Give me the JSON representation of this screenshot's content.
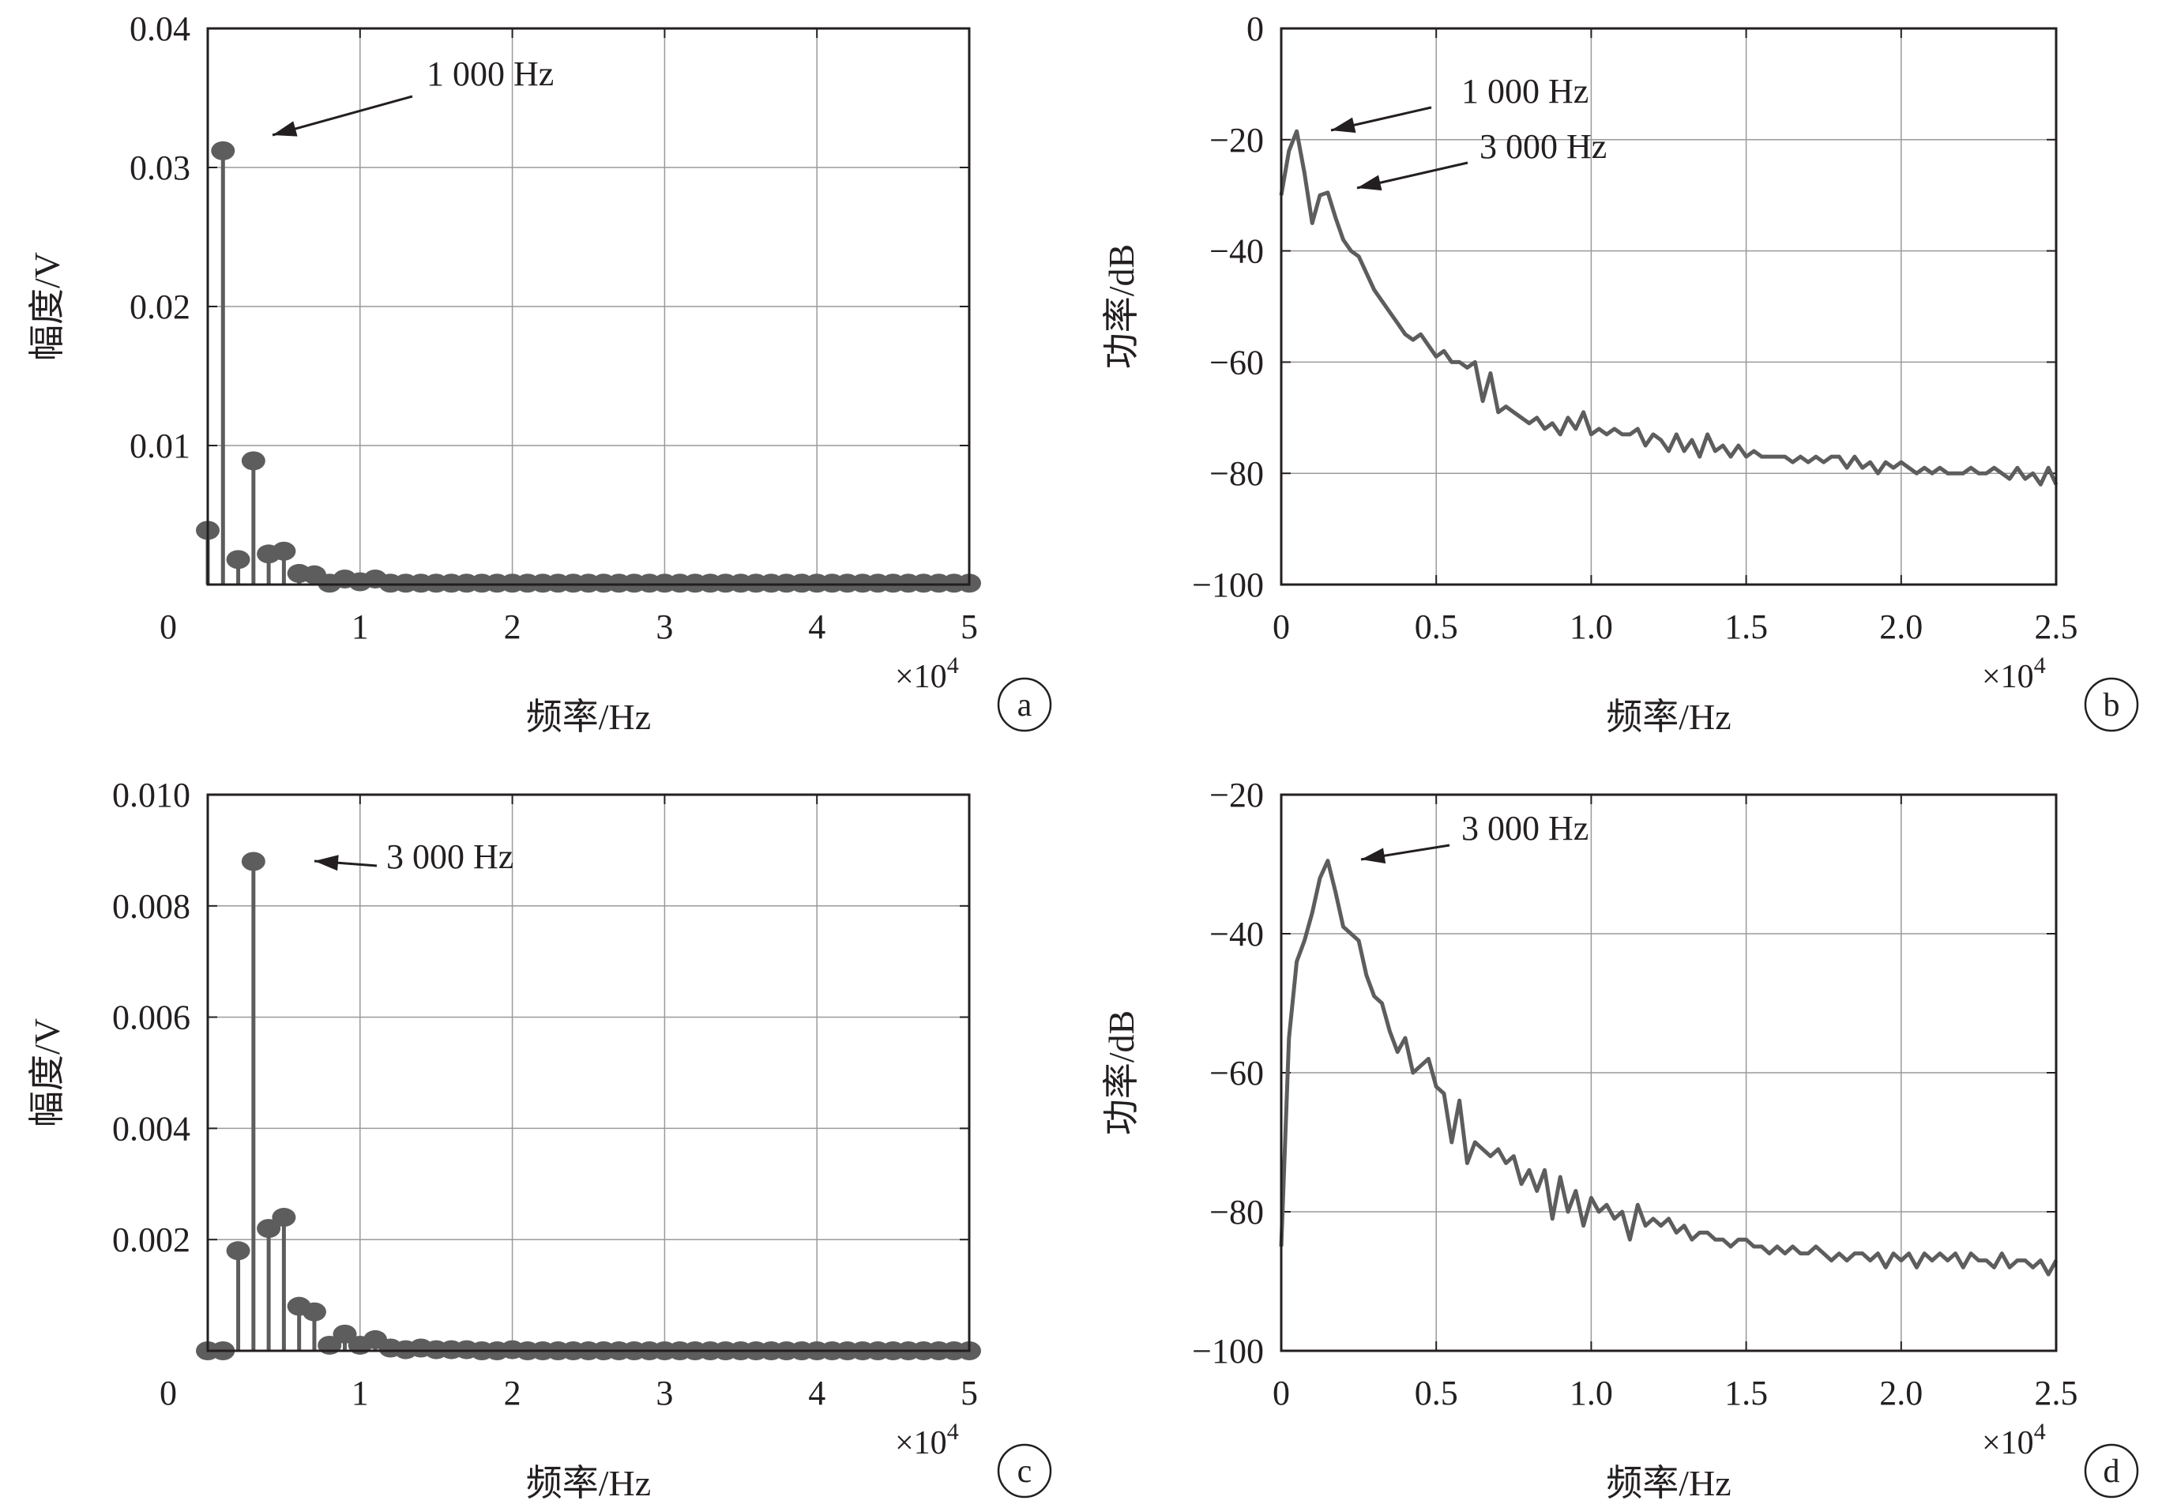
{
  "figure": {
    "color_axis": "#231f20",
    "color_grid": "#9a9a9a",
    "color_series": "#5d5d5d"
  },
  "chart_data": [
    {
      "panel": "a",
      "type": "stem",
      "title": "",
      "xlabel": "频率/Hz",
      "ylabel": "幅度/V",
      "x_multiplier": "×10",
      "x_multiplier_exp": "4",
      "panel_label": "a",
      "xlim": [
        0,
        50000
      ],
      "ylim": [
        0,
        0.04
      ],
      "xticks": [
        0,
        10000,
        20000,
        30000,
        40000,
        50000
      ],
      "xtick_labels": [
        "0",
        "1",
        "2",
        "3",
        "4",
        "5"
      ],
      "yticks": [
        0.01,
        0.02,
        0.03,
        0.04
      ],
      "ytick_labels": [
        "0.01",
        "0.02",
        "0.03",
        "0.04"
      ],
      "grid": true,
      "annotations": [
        {
          "text": "1 000 Hz",
          "x": 1000,
          "y": 0.0312
        }
      ],
      "x": [
        0,
        1000,
        2000,
        3000,
        4000,
        5000,
        6000,
        7000,
        8000,
        9000,
        10000,
        11000,
        12000,
        13000,
        14000,
        15000,
        16000,
        17000,
        18000,
        19000,
        20000,
        21000,
        22000,
        23000,
        24000,
        25000,
        26000,
        27000,
        28000,
        29000,
        30000,
        31000,
        32000,
        33000,
        34000,
        35000,
        36000,
        37000,
        38000,
        39000,
        40000,
        41000,
        42000,
        43000,
        44000,
        45000,
        46000,
        47000,
        48000,
        49000,
        50000
      ],
      "values": [
        0.0039,
        0.0312,
        0.0018,
        0.0089,
        0.0022,
        0.0024,
        0.0008,
        0.0007,
        0.0001,
        0.0004,
        0.0002,
        0.0004,
        0.0001,
        0.0001,
        0.0001,
        0.0001,
        0.0001,
        0.0001,
        0.0001,
        0.0001,
        0.0001,
        0.0001,
        0.0001,
        0.0001,
        0.0001,
        0.0001,
        0.0001,
        0.0001,
        0.0001,
        0.0001,
        0.0001,
        0.0001,
        0.0001,
        0.0001,
        0.0001,
        0.0001,
        0.0001,
        0.0001,
        0.0001,
        0.0001,
        0.0001,
        0.0001,
        0.0001,
        0.0001,
        0.0001,
        0.0001,
        0.0001,
        0.0001,
        0.0001,
        0.0001,
        0.0001
      ]
    },
    {
      "panel": "b",
      "type": "line",
      "title": "",
      "xlabel": "频率/Hz",
      "ylabel": "功率/dB",
      "x_multiplier": "×10",
      "x_multiplier_exp": "4",
      "panel_label": "b",
      "xlim": [
        0,
        25000
      ],
      "ylim": [
        -100,
        0
      ],
      "xticks": [
        0,
        5000,
        10000,
        15000,
        20000,
        25000
      ],
      "xtick_labels": [
        "0",
        "0.5",
        "1.0",
        "1.5",
        "2.0",
        "2.5"
      ],
      "yticks": [
        -100,
        -80,
        -60,
        -40,
        -20,
        0
      ],
      "ytick_labels": [
        "−100",
        "−80",
        "−60",
        "−40",
        "−20",
        "0"
      ],
      "grid": true,
      "annotations": [
        {
          "text": "1 000 Hz",
          "x": 500,
          "y": -19
        },
        {
          "text": "3 000 Hz",
          "x": 1500,
          "y": -29
        }
      ],
      "x": [
        0,
        250,
        500,
        750,
        1000,
        1250,
        1500,
        1750,
        2000,
        2250,
        2500,
        2750,
        3000,
        3250,
        3500,
        3750,
        4000,
        4250,
        4500,
        4750,
        5000,
        5250,
        5500,
        5750,
        6000,
        6250,
        6500,
        6750,
        7000,
        7250,
        7500,
        7750,
        8000,
        8250,
        8500,
        8750,
        9000,
        9250,
        9500,
        9750,
        10000,
        10250,
        10500,
        10750,
        11000,
        11250,
        11500,
        11750,
        12000,
        12250,
        12500,
        12750,
        13000,
        13250,
        13500,
        13750,
        14000,
        14250,
        14500,
        14750,
        15000,
        15250,
        15500,
        15750,
        16000,
        16250,
        16500,
        16750,
        17000,
        17250,
        17500,
        17750,
        18000,
        18250,
        18500,
        18750,
        19000,
        19250,
        19500,
        19750,
        20000,
        20250,
        20500,
        20750,
        21000,
        21250,
        21500,
        21750,
        22000,
        22250,
        22500,
        22750,
        23000,
        23250,
        23500,
        23750,
        24000,
        24250,
        24500,
        24750,
        25000
      ],
      "values": [
        -30,
        -22,
        -18.5,
        -26,
        -35,
        -30,
        -29.5,
        -34,
        -38,
        -40,
        -41,
        -44,
        -47,
        -49,
        -51,
        -53,
        -55,
        -56,
        -55,
        -57,
        -59,
        -58,
        -60,
        -60,
        -61,
        -60,
        -67,
        -62,
        -69,
        -68,
        -69,
        -70,
        -71,
        -70,
        -72,
        -71,
        -73,
        -70,
        -72,
        -69,
        -73,
        -72,
        -73,
        -72,
        -73,
        -73,
        -72,
        -75,
        -73,
        -74,
        -76,
        -73,
        -76,
        -74,
        -77,
        -73,
        -76,
        -75,
        -77,
        -75,
        -77,
        -76,
        -77,
        -77,
        -77,
        -77,
        -78,
        -77,
        -78,
        -77,
        -78,
        -77,
        -77,
        -79,
        -77,
        -79,
        -78,
        -80,
        -78,
        -79,
        -78,
        -79,
        -80,
        -79,
        -80,
        -79,
        -80,
        -80,
        -80,
        -79,
        -80,
        -80,
        -79,
        -80,
        -81,
        -79,
        -81,
        -80,
        -82,
        -79,
        -82
      ]
    },
    {
      "panel": "c",
      "type": "stem",
      "title": "",
      "xlabel": "频率/Hz",
      "ylabel": "幅度/V",
      "x_multiplier": "×10",
      "x_multiplier_exp": "4",
      "panel_label": "c",
      "xlim": [
        0,
        50000
      ],
      "ylim": [
        0,
        0.01
      ],
      "xticks": [
        0,
        10000,
        20000,
        30000,
        40000,
        50000
      ],
      "xtick_labels": [
        "0",
        "1",
        "2",
        "3",
        "4",
        "5"
      ],
      "yticks": [
        0.002,
        0.004,
        0.006,
        0.008,
        0.01
      ],
      "ytick_labels": [
        "0.002",
        "0.004",
        "0.006",
        "0.008",
        "0.010"
      ],
      "grid": true,
      "annotations": [
        {
          "text": "3 000 Hz",
          "x": 3000,
          "y": 0.0088
        }
      ],
      "x": [
        0,
        1000,
        2000,
        3000,
        4000,
        5000,
        6000,
        7000,
        8000,
        9000,
        10000,
        11000,
        12000,
        13000,
        14000,
        15000,
        16000,
        17000,
        18000,
        19000,
        20000,
        21000,
        22000,
        23000,
        24000,
        25000,
        26000,
        27000,
        28000,
        29000,
        30000,
        31000,
        32000,
        33000,
        34000,
        35000,
        36000,
        37000,
        38000,
        39000,
        40000,
        41000,
        42000,
        43000,
        44000,
        45000,
        46000,
        47000,
        48000,
        49000,
        50000
      ],
      "values": [
        0,
        0,
        0.0018,
        0.0088,
        0.0022,
        0.0024,
        0.0008,
        0.0007,
        0.0001,
        0.0003,
        0.0001,
        0.0002,
        5e-05,
        2e-05,
        5e-05,
        2e-05,
        2e-05,
        2e-05,
        0,
        0,
        2e-05,
        0,
        0,
        0,
        0,
        0,
        0,
        0,
        0,
        0,
        0,
        0,
        0,
        0,
        0,
        0,
        0,
        0,
        0,
        0,
        0,
        0,
        0,
        0,
        0,
        0,
        0,
        0,
        0,
        0,
        0
      ]
    },
    {
      "panel": "d",
      "type": "line",
      "title": "",
      "xlabel": "频率/Hz",
      "ylabel": "功率/dB",
      "x_multiplier": "×10",
      "x_multiplier_exp": "4",
      "panel_label": "d",
      "xlim": [
        0,
        25000
      ],
      "ylim": [
        -100,
        -20
      ],
      "xticks": [
        0,
        5000,
        10000,
        15000,
        20000,
        25000
      ],
      "xtick_labels": [
        "0",
        "0.5",
        "1.0",
        "1.5",
        "2.0",
        "2.5"
      ],
      "yticks": [
        -100,
        -80,
        -60,
        -40,
        -20
      ],
      "ytick_labels": [
        "−100",
        "−80",
        "−60",
        "−40",
        "−20"
      ],
      "grid": true,
      "annotations": [
        {
          "text": "3 000 Hz",
          "x": 1500,
          "y": -29.5
        }
      ],
      "x": [
        0,
        250,
        500,
        750,
        1000,
        1250,
        1500,
        1750,
        2000,
        2250,
        2500,
        2750,
        3000,
        3250,
        3500,
        3750,
        4000,
        4250,
        4500,
        4750,
        5000,
        5250,
        5500,
        5750,
        6000,
        6250,
        6500,
        6750,
        7000,
        7250,
        7500,
        7750,
        8000,
        8250,
        8500,
        8750,
        9000,
        9250,
        9500,
        9750,
        10000,
        10250,
        10500,
        10750,
        11000,
        11250,
        11500,
        11750,
        12000,
        12250,
        12500,
        12750,
        13000,
        13250,
        13500,
        13750,
        14000,
        14250,
        14500,
        14750,
        15000,
        15250,
        15500,
        15750,
        16000,
        16250,
        16500,
        16750,
        17000,
        17250,
        17500,
        17750,
        18000,
        18250,
        18500,
        18750,
        19000,
        19250,
        19500,
        19750,
        20000,
        20250,
        20500,
        20750,
        21000,
        21250,
        21500,
        21750,
        22000,
        22250,
        22500,
        22750,
        23000,
        23250,
        23500,
        23750,
        24000,
        24250,
        24500,
        24750,
        25000
      ],
      "values": [
        -85,
        -55,
        -44,
        -41,
        -37,
        -32,
        -29.5,
        -34,
        -39,
        -40,
        -41,
        -46,
        -49,
        -50,
        -54,
        -57,
        -55,
        -60,
        -59,
        -58,
        -62,
        -63,
        -70,
        -64,
        -73,
        -70,
        -71,
        -72,
        -71,
        -73,
        -72,
        -76,
        -74,
        -77,
        -74,
        -81,
        -75,
        -80,
        -77,
        -82,
        -78,
        -80,
        -79,
        -81,
        -80,
        -84,
        -79,
        -82,
        -81,
        -82,
        -81,
        -83,
        -82,
        -84,
        -83,
        -83,
        -84,
        -84,
        -85,
        -84,
        -84,
        -85,
        -85,
        -86,
        -85,
        -86,
        -85,
        -86,
        -86,
        -85,
        -86,
        -87,
        -86,
        -87,
        -86,
        -86,
        -87,
        -86,
        -88,
        -86,
        -87,
        -86,
        -88,
        -86,
        -87,
        -86,
        -87,
        -86,
        -88,
        -86,
        -87,
        -87,
        -88,
        -86,
        -88,
        -87,
        -87,
        -88,
        -87,
        -89,
        -87
      ]
    }
  ]
}
